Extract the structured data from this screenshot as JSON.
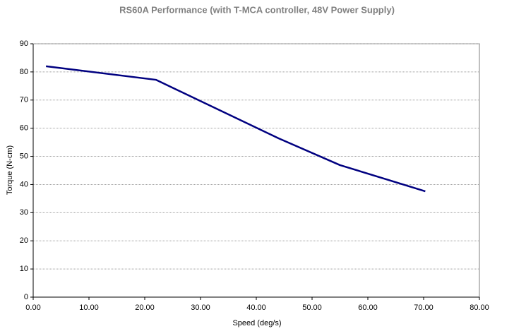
{
  "chart_data": {
    "type": "line",
    "title": "RS60A Performance (with T-MCA controller, 48V Power Supply)",
    "x_label": "Speed (deg/s)",
    "y_label": "Torque (N-cm)",
    "x": [
      2.3,
      22.0,
      44.0,
      55.0,
      70.3
    ],
    "values": [
      82.0,
      77.2,
      56.4,
      46.9,
      37.6
    ],
    "color": "#000080",
    "xlim": [
      0,
      80
    ],
    "xticks": [
      {
        "value": 0,
        "label": "0.00"
      },
      {
        "value": 10,
        "label": "10.00"
      },
      {
        "value": 20,
        "label": "20.00"
      },
      {
        "value": 30,
        "label": "30.00"
      },
      {
        "value": 40,
        "label": "40.00"
      },
      {
        "value": 50,
        "label": "50.00"
      },
      {
        "value": 60,
        "label": "60.00"
      },
      {
        "value": 70,
        "label": "70.00"
      },
      {
        "value": 80,
        "label": "80.00"
      }
    ],
    "ylim": [
      0,
      90
    ],
    "yticks": [
      0,
      10,
      20,
      30,
      40,
      50,
      60,
      70,
      80,
      90
    ],
    "grid": true
  }
}
